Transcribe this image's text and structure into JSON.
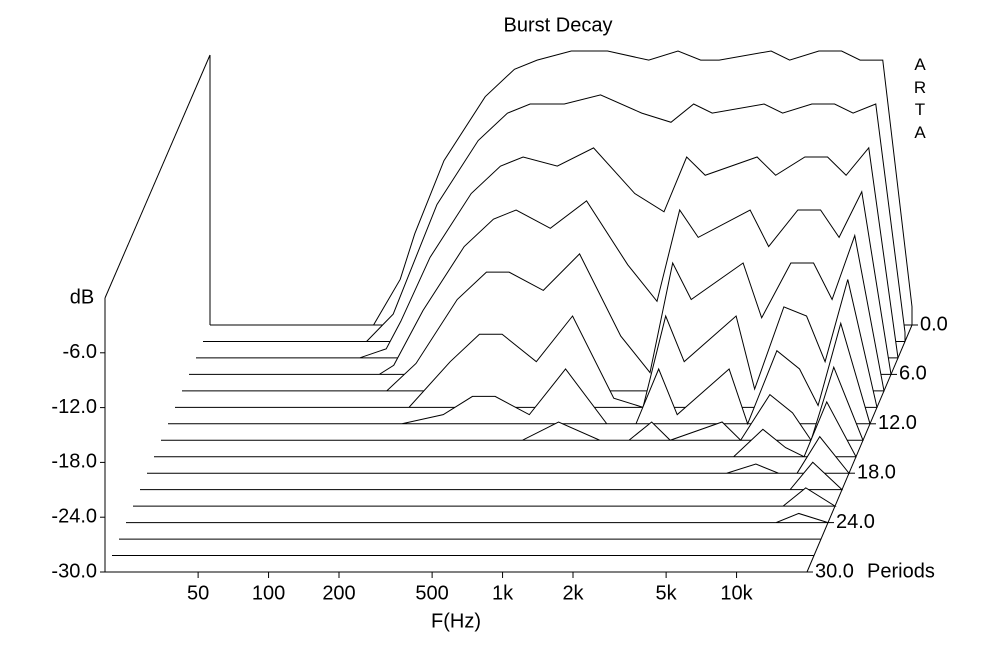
{
  "chart_data": {
    "type": "waterfall",
    "title": "Burst Decay",
    "watermark": "ARTA",
    "xlabel": "F(Hz)",
    "ylabel": "dB",
    "zlabel": "Periods",
    "xscale": "log",
    "xlim": [
      20,
      20000
    ],
    "xticks": [
      50,
      100,
      200,
      500,
      {
        "value": 1000,
        "label": "1k"
      },
      {
        "value": 2000,
        "label": "2k"
      },
      {
        "value": 5000,
        "label": "5k"
      },
      {
        "value": 10000,
        "label": "10k"
      }
    ],
    "ylim": [
      -30,
      0
    ],
    "yticks": [
      {
        "value": -6,
        "label": "-6.0"
      },
      {
        "value": -12,
        "label": "-12.0"
      },
      {
        "value": -18,
        "label": "-18.0"
      },
      {
        "value": -24,
        "label": "-24.0"
      },
      {
        "value": -30,
        "label": "-30.0"
      }
    ],
    "zlim": [
      0,
      30
    ],
    "zticks": [
      {
        "value": 0,
        "label": "0.0"
      },
      {
        "value": 6,
        "label": "6.0"
      },
      {
        "value": 12,
        "label": "12.0"
      },
      {
        "value": 18,
        "label": "18.0"
      },
      {
        "value": 24,
        "label": "24.0"
      },
      {
        "value": 30,
        "label": "30.0"
      }
    ],
    "frequencies": [
      20,
      50,
      100,
      130,
      150,
      200,
      300,
      400,
      500,
      700,
      1000,
      1500,
      2000,
      2500,
      3000,
      5000,
      6000,
      8000,
      10000,
      12000,
      15000,
      20000
    ],
    "slices": [
      {
        "period": 0,
        "values": [
          -30,
          -30,
          -30,
          -25,
          -20,
          -12,
          -5,
          -2,
          -1,
          0,
          0,
          -1,
          0,
          -1,
          -1,
          0,
          -1,
          0,
          0,
          -1,
          -1,
          -28
        ]
      },
      {
        "period": 2,
        "values": [
          -30,
          -30,
          -30,
          -27,
          -23,
          -15,
          -8,
          -5,
          -4,
          -4,
          -3,
          -5,
          -6,
          -4,
          -5,
          -4,
          -5,
          -4,
          -4,
          -5,
          -4,
          -29
        ]
      },
      {
        "period": 4,
        "values": [
          -30,
          -30,
          -30,
          -29,
          -26,
          -19,
          -12,
          -9,
          -8,
          -9,
          -7,
          -12,
          -14,
          -8,
          -10,
          -8,
          -10,
          -8,
          -8,
          -10,
          -7,
          -30
        ]
      },
      {
        "period": 6,
        "values": [
          -30,
          -30,
          -30,
          -30,
          -29,
          -23,
          -16,
          -13,
          -12,
          -14,
          -11,
          -18,
          -22,
          -12,
          -15,
          -12,
          -16,
          -12,
          -12,
          -15,
          -10,
          -30
        ]
      },
      {
        "period": 8,
        "values": [
          -30,
          -30,
          -30,
          -30,
          -30,
          -27,
          -20,
          -17,
          -17,
          -19,
          -15,
          -24,
          -28,
          -16,
          -20,
          -16,
          -22,
          -16,
          -16,
          -20,
          -13,
          -30
        ]
      },
      {
        "period": 10,
        "values": [
          -30,
          -30,
          -30,
          -30,
          -30,
          -30,
          -25,
          -22,
          -22,
          -25,
          -20,
          -29,
          -30,
          -20,
          -25,
          -20,
          -28,
          -19,
          -20,
          -25,
          -16,
          -30
        ]
      },
      {
        "period": 12,
        "values": [
          -30,
          -30,
          -30,
          -30,
          -30,
          -30,
          -29,
          -27,
          -27,
          -29,
          -24,
          -30,
          -30,
          -24,
          -29,
          -24,
          -30,
          -22,
          -24,
          -28,
          -19,
          -30
        ]
      },
      {
        "period": 14,
        "values": [
          -30,
          -30,
          -30,
          -30,
          -30,
          -30,
          -30,
          -30,
          -30,
          -30,
          -28,
          -30,
          -30,
          -28,
          -30,
          -28,
          -30,
          -25,
          -27,
          -30,
          -22,
          -30
        ]
      },
      {
        "period": 16,
        "values": [
          -30,
          -30,
          -30,
          -30,
          -30,
          -30,
          -30,
          -30,
          -30,
          -30,
          -30,
          -30,
          -30,
          -30,
          -30,
          -30,
          -30,
          -27,
          -29,
          -30,
          -24,
          -30
        ]
      },
      {
        "period": 18,
        "values": [
          -30,
          -30,
          -30,
          -30,
          -30,
          -30,
          -30,
          -30,
          -30,
          -30,
          -30,
          -30,
          -30,
          -30,
          -30,
          -30,
          -30,
          -29,
          -30,
          -30,
          -26,
          -30
        ]
      },
      {
        "period": 20,
        "values": [
          -30,
          -30,
          -30,
          -30,
          -30,
          -30,
          -30,
          -30,
          -30,
          -30,
          -30,
          -30,
          -30,
          -30,
          -30,
          -30,
          -30,
          -30,
          -30,
          -30,
          -27,
          -30
        ]
      },
      {
        "period": 22,
        "values": [
          -30,
          -30,
          -30,
          -30,
          -30,
          -30,
          -30,
          -30,
          -30,
          -30,
          -30,
          -30,
          -30,
          -30,
          -30,
          -30,
          -30,
          -30,
          -30,
          -30,
          -28,
          -30
        ]
      },
      {
        "period": 24,
        "values": [
          -30,
          -30,
          -30,
          -30,
          -30,
          -30,
          -30,
          -30,
          -30,
          -30,
          -30,
          -30,
          -30,
          -30,
          -30,
          -30,
          -30,
          -30,
          -30,
          -30,
          -29,
          -30
        ]
      },
      {
        "period": 26,
        "values": [
          -30,
          -30,
          -30,
          -30,
          -30,
          -30,
          -30,
          -30,
          -30,
          -30,
          -30,
          -30,
          -30,
          -30,
          -30,
          -30,
          -30,
          -30,
          -30,
          -30,
          -30,
          -30
        ]
      },
      {
        "period": 28,
        "values": [
          -30,
          -30,
          -30,
          -30,
          -30,
          -30,
          -30,
          -30,
          -30,
          -30,
          -30,
          -30,
          -30,
          -30,
          -30,
          -30,
          -30,
          -30,
          -30,
          -30,
          -30,
          -30
        ]
      },
      {
        "period": 30,
        "values": [
          -30,
          -30,
          -30,
          -30,
          -30,
          -30,
          -30,
          -30,
          -30,
          -30,
          -30,
          -30,
          -30,
          -30,
          -30,
          -30,
          -30,
          -30,
          -30,
          -30,
          -30,
          -30
        ]
      }
    ]
  }
}
